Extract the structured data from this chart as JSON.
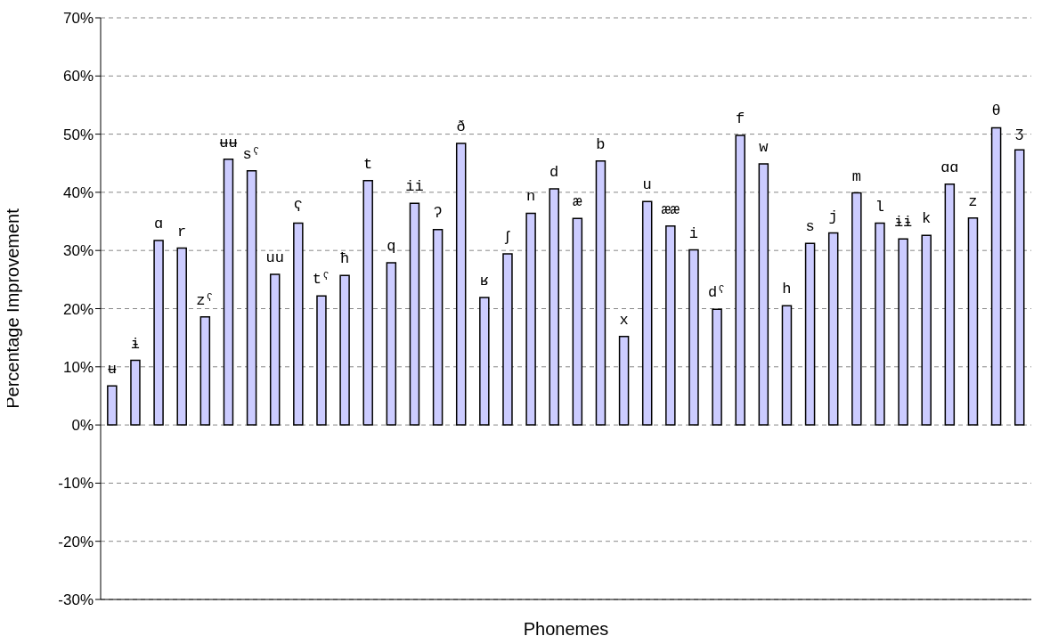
{
  "chart_data": {
    "type": "bar",
    "xlabel": "Phonemes",
    "ylabel": "Percentage Improvement",
    "categories": [
      "ʉ",
      "ɨ",
      "ɑ",
      "r",
      "zˤ",
      "ʉʉ",
      "sˤ",
      "uu",
      "ʕ",
      "tˤ",
      "ħ",
      "t",
      "q",
      "ii",
      "ʔ",
      "ð",
      "ʁ",
      "ʃ",
      "n",
      "d",
      "æ",
      "b",
      "x",
      "u",
      "ææ",
      "i",
      "dˤ",
      "f",
      "w",
      "h",
      "s",
      "j",
      "m",
      "l",
      "ɨɨ",
      "k",
      "ɑɑ",
      "z",
      "θ",
      "ʒ"
    ],
    "values": [
      6.7,
      11.1,
      31.7,
      30.4,
      18.6,
      45.7,
      43.7,
      25.9,
      34.7,
      22.2,
      25.7,
      42.0,
      27.9,
      38.1,
      33.6,
      48.4,
      21.9,
      29.4,
      36.4,
      40.6,
      35.5,
      45.4,
      15.2,
      38.4,
      34.2,
      30.1,
      19.9,
      49.8,
      44.9,
      20.5,
      31.2,
      33.0,
      39.9,
      34.7,
      32.0,
      32.6,
      41.4,
      35.6,
      51.1,
      47.3
    ],
    "color": "#ccccff",
    "ylim": [
      -30,
      70
    ],
    "yticks": [
      {
        "value": -30,
        "label": "-30%"
      },
      {
        "value": -20,
        "label": "-20%"
      },
      {
        "value": -10,
        "label": "-10%"
      },
      {
        "value": 0,
        "label": "0%"
      },
      {
        "value": 10,
        "label": "10%"
      },
      {
        "value": 20,
        "label": "20%"
      },
      {
        "value": 30,
        "label": "30%"
      },
      {
        "value": 40,
        "label": "40%"
      },
      {
        "value": 50,
        "label": "50%"
      },
      {
        "value": 60,
        "label": "60%"
      },
      {
        "value": 70,
        "label": "70%"
      }
    ],
    "grid": "y",
    "tick_labels": "y",
    "legend": false
  }
}
